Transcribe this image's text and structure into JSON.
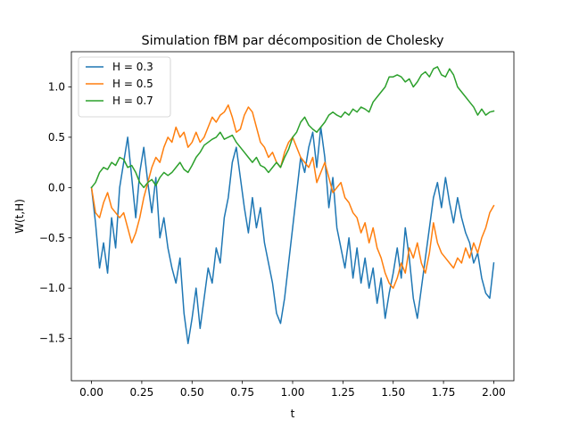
{
  "chart_data": {
    "type": "line",
    "title": "Simulation fBM par décomposition de Cholesky",
    "xlabel": "t",
    "ylabel": "W(t,H)",
    "xlim": [
      -0.1,
      2.1
    ],
    "ylim": [
      -1.92,
      1.35
    ],
    "xticks": [
      0.0,
      0.25,
      0.5,
      0.75,
      1.0,
      1.25,
      1.5,
      1.75,
      2.0
    ],
    "xtick_labels": [
      "0.00",
      "0.25",
      "0.50",
      "0.75",
      "1.00",
      "1.25",
      "1.50",
      "1.75",
      "2.00"
    ],
    "yticks": [
      -1.5,
      -1.0,
      -0.5,
      0.0,
      0.5,
      1.0
    ],
    "ytick_labels": [
      "−1.5",
      "−1.0",
      "−0.5",
      "0.0",
      "0.5",
      "1.0"
    ],
    "grid": false,
    "legend_position": "upper-left",
    "series": [
      {
        "name": "H = 0.3",
        "color": "#1f77b4",
        "x": [
          0.0,
          0.02,
          0.04,
          0.06,
          0.08,
          0.1,
          0.12,
          0.14,
          0.16,
          0.18,
          0.2,
          0.22,
          0.24,
          0.26,
          0.28,
          0.3,
          0.32,
          0.34,
          0.36,
          0.38,
          0.4,
          0.42,
          0.44,
          0.46,
          0.48,
          0.5,
          0.52,
          0.54,
          0.56,
          0.58,
          0.6,
          0.62,
          0.64,
          0.66,
          0.68,
          0.7,
          0.72,
          0.74,
          0.76,
          0.78,
          0.8,
          0.82,
          0.84,
          0.86,
          0.88,
          0.9,
          0.92,
          0.94,
          0.96,
          0.98,
          1.0,
          1.02,
          1.04,
          1.06,
          1.08,
          1.1,
          1.12,
          1.14,
          1.16,
          1.18,
          1.2,
          1.22,
          1.24,
          1.26,
          1.28,
          1.3,
          1.32,
          1.34,
          1.36,
          1.38,
          1.4,
          1.42,
          1.44,
          1.46,
          1.48,
          1.5,
          1.52,
          1.54,
          1.56,
          1.58,
          1.6,
          1.62,
          1.64,
          1.66,
          1.68,
          1.7,
          1.72,
          1.74,
          1.76,
          1.78,
          1.8,
          1.82,
          1.84,
          1.86,
          1.88,
          1.9,
          1.92,
          1.94,
          1.96,
          1.98,
          2.0
        ],
        "y": [
          0.0,
          -0.35,
          -0.8,
          -0.55,
          -0.85,
          -0.3,
          -0.6,
          0.0,
          0.25,
          0.5,
          0.1,
          -0.3,
          0.15,
          0.4,
          0.05,
          -0.25,
          0.1,
          -0.5,
          -0.3,
          -0.6,
          -0.8,
          -0.95,
          -0.7,
          -1.25,
          -1.55,
          -1.3,
          -1.0,
          -1.4,
          -1.1,
          -0.8,
          -0.95,
          -0.6,
          -0.75,
          -0.3,
          -0.1,
          0.25,
          0.4,
          0.1,
          -0.2,
          -0.45,
          -0.1,
          -0.4,
          -0.2,
          -0.55,
          -0.75,
          -0.95,
          -1.25,
          -1.35,
          -1.1,
          -0.75,
          -0.4,
          -0.05,
          0.3,
          0.15,
          0.4,
          0.55,
          0.2,
          0.6,
          0.3,
          -0.2,
          0.1,
          -0.4,
          -0.6,
          -0.8,
          -0.5,
          -0.9,
          -0.6,
          -0.95,
          -0.7,
          -1.0,
          -0.8,
          -1.15,
          -0.9,
          -1.3,
          -1.05,
          -0.85,
          -0.6,
          -0.9,
          -0.4,
          -0.7,
          -1.1,
          -1.3,
          -1.0,
          -0.7,
          -0.4,
          -0.1,
          0.05,
          -0.2,
          0.1,
          -0.15,
          -0.35,
          -0.1,
          -0.3,
          -0.45,
          -0.55,
          -0.75,
          -0.65,
          -0.9,
          -1.05,
          -1.1,
          -0.75
        ]
      },
      {
        "name": "H = 0.5",
        "color": "#ff7f0e",
        "x": [
          0.0,
          0.02,
          0.04,
          0.06,
          0.08,
          0.1,
          0.12,
          0.14,
          0.16,
          0.18,
          0.2,
          0.22,
          0.24,
          0.26,
          0.28,
          0.3,
          0.32,
          0.34,
          0.36,
          0.38,
          0.4,
          0.42,
          0.44,
          0.46,
          0.48,
          0.5,
          0.52,
          0.54,
          0.56,
          0.58,
          0.6,
          0.62,
          0.64,
          0.66,
          0.68,
          0.7,
          0.72,
          0.74,
          0.76,
          0.78,
          0.8,
          0.82,
          0.84,
          0.86,
          0.88,
          0.9,
          0.92,
          0.94,
          0.96,
          0.98,
          1.0,
          1.02,
          1.04,
          1.06,
          1.08,
          1.1,
          1.12,
          1.14,
          1.16,
          1.18,
          1.2,
          1.22,
          1.24,
          1.26,
          1.28,
          1.3,
          1.32,
          1.34,
          1.36,
          1.38,
          1.4,
          1.42,
          1.44,
          1.46,
          1.48,
          1.5,
          1.52,
          1.54,
          1.56,
          1.58,
          1.6,
          1.62,
          1.64,
          1.66,
          1.68,
          1.7,
          1.72,
          1.74,
          1.76,
          1.78,
          1.8,
          1.82,
          1.84,
          1.86,
          1.88,
          1.9,
          1.92,
          1.94,
          1.96,
          1.98,
          2.0
        ],
        "y": [
          0.0,
          -0.25,
          -0.3,
          -0.15,
          -0.05,
          -0.2,
          -0.25,
          -0.3,
          -0.25,
          -0.4,
          -0.55,
          -0.45,
          -0.3,
          -0.1,
          0.05,
          0.2,
          0.3,
          0.25,
          0.4,
          0.5,
          0.45,
          0.6,
          0.5,
          0.55,
          0.4,
          0.45,
          0.55,
          0.45,
          0.5,
          0.6,
          0.7,
          0.65,
          0.72,
          0.75,
          0.82,
          0.7,
          0.55,
          0.58,
          0.72,
          0.8,
          0.75,
          0.6,
          0.45,
          0.4,
          0.3,
          0.35,
          0.25,
          0.2,
          0.35,
          0.45,
          0.5,
          0.4,
          0.3,
          0.25,
          0.2,
          0.3,
          0.05,
          0.15,
          0.25,
          0.1,
          -0.05,
          0.0,
          0.05,
          -0.1,
          -0.15,
          -0.25,
          -0.3,
          -0.45,
          -0.35,
          -0.55,
          -0.4,
          -0.6,
          -0.7,
          -0.85,
          -0.95,
          -1.0,
          -0.9,
          -0.75,
          -0.85,
          -0.6,
          -0.7,
          -0.55,
          -0.75,
          -0.85,
          -0.65,
          -0.35,
          -0.55,
          -0.65,
          -0.7,
          -0.75,
          -0.8,
          -0.7,
          -0.75,
          -0.6,
          -0.7,
          -0.55,
          -0.65,
          -0.5,
          -0.4,
          -0.25,
          -0.18
        ]
      },
      {
        "name": "H = 0.7",
        "color": "#2ca02c",
        "x": [
          0.0,
          0.02,
          0.04,
          0.06,
          0.08,
          0.1,
          0.12,
          0.14,
          0.16,
          0.18,
          0.2,
          0.22,
          0.24,
          0.26,
          0.28,
          0.3,
          0.32,
          0.34,
          0.36,
          0.38,
          0.4,
          0.42,
          0.44,
          0.46,
          0.48,
          0.5,
          0.52,
          0.54,
          0.56,
          0.58,
          0.6,
          0.62,
          0.64,
          0.66,
          0.68,
          0.7,
          0.72,
          0.74,
          0.76,
          0.78,
          0.8,
          0.82,
          0.84,
          0.86,
          0.88,
          0.9,
          0.92,
          0.94,
          0.96,
          0.98,
          1.0,
          1.02,
          1.04,
          1.06,
          1.08,
          1.1,
          1.12,
          1.14,
          1.16,
          1.18,
          1.2,
          1.22,
          1.24,
          1.26,
          1.28,
          1.3,
          1.32,
          1.34,
          1.36,
          1.38,
          1.4,
          1.42,
          1.44,
          1.46,
          1.48,
          1.5,
          1.52,
          1.54,
          1.56,
          1.58,
          1.6,
          1.62,
          1.64,
          1.66,
          1.68,
          1.7,
          1.72,
          1.74,
          1.76,
          1.78,
          1.8,
          1.82,
          1.84,
          1.86,
          1.88,
          1.9,
          1.92,
          1.94,
          1.96,
          1.98,
          2.0
        ],
        "y": [
          0.0,
          0.05,
          0.15,
          0.2,
          0.18,
          0.25,
          0.22,
          0.3,
          0.28,
          0.2,
          0.22,
          0.15,
          0.05,
          0.0,
          0.05,
          0.08,
          0.02,
          0.1,
          0.15,
          0.12,
          0.15,
          0.2,
          0.25,
          0.18,
          0.15,
          0.22,
          0.3,
          0.35,
          0.42,
          0.45,
          0.48,
          0.5,
          0.55,
          0.48,
          0.5,
          0.52,
          0.45,
          0.4,
          0.35,
          0.3,
          0.25,
          0.3,
          0.22,
          0.2,
          0.15,
          0.2,
          0.25,
          0.2,
          0.3,
          0.38,
          0.5,
          0.55,
          0.65,
          0.7,
          0.62,
          0.58,
          0.55,
          0.6,
          0.65,
          0.72,
          0.75,
          0.72,
          0.7,
          0.75,
          0.72,
          0.78,
          0.75,
          0.8,
          0.78,
          0.75,
          0.85,
          0.9,
          0.95,
          1.0,
          1.1,
          1.1,
          1.12,
          1.1,
          1.05,
          1.08,
          1.0,
          1.05,
          1.12,
          1.15,
          1.1,
          1.18,
          1.2,
          1.12,
          1.1,
          1.18,
          1.12,
          1.0,
          0.95,
          0.9,
          0.85,
          0.8,
          0.72,
          0.78,
          0.72,
          0.75,
          0.76
        ]
      }
    ]
  }
}
